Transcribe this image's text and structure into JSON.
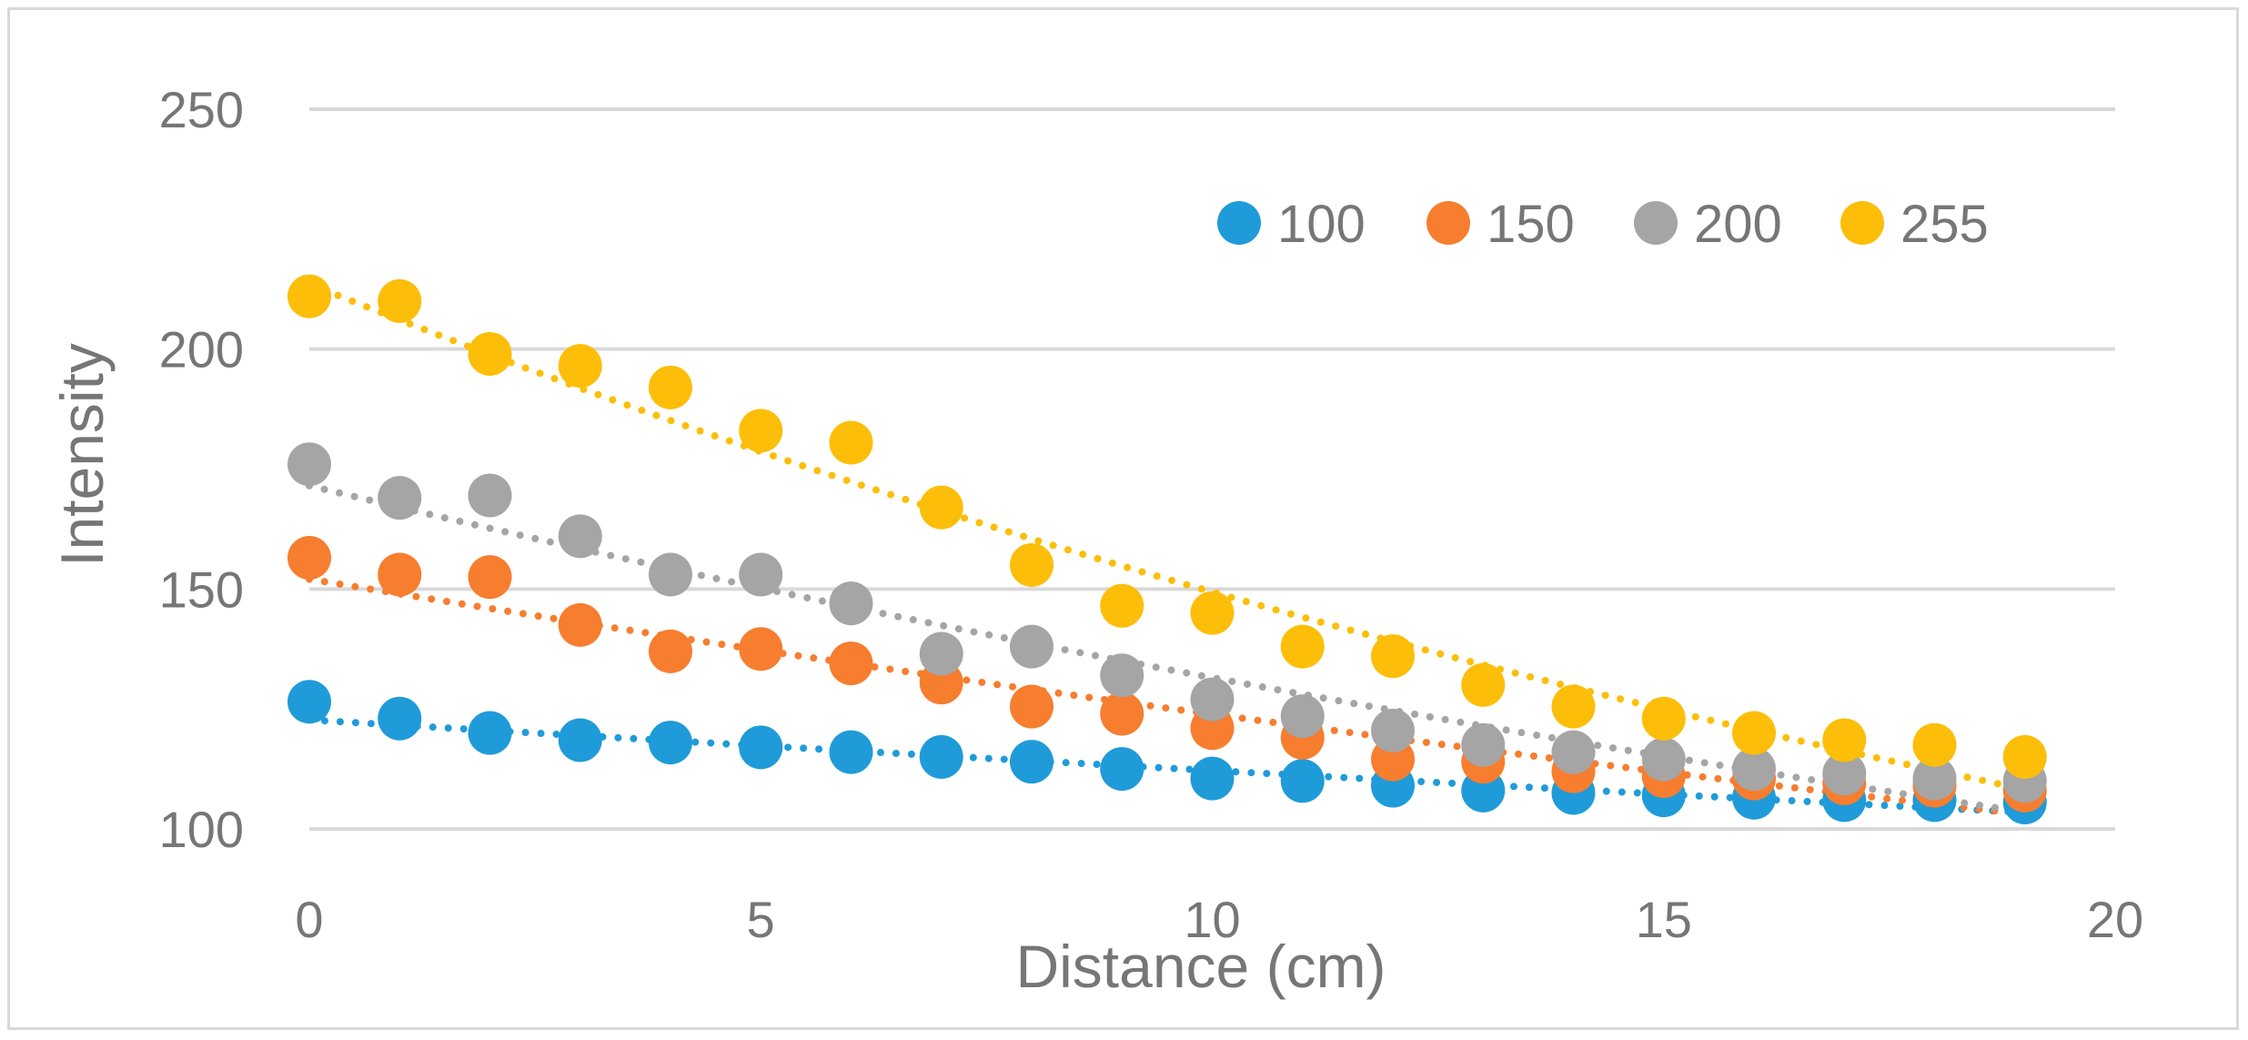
{
  "chart_data": {
    "type": "scatter",
    "title": "",
    "xlabel": "Distance  (cm)",
    "ylabel": "Intensity",
    "xlim": [
      0,
      20
    ],
    "ylim": [
      100,
      250
    ],
    "x_ticks": [
      "0",
      "5",
      "10",
      "15",
      "20"
    ],
    "y_ticks": [
      "100",
      "150",
      "200",
      "250"
    ],
    "grid": "horizontal",
    "legend_position": "top-right",
    "trendlines": "dotted",
    "x": [
      0,
      1,
      2,
      3,
      4,
      5,
      6,
      7,
      8,
      9,
      10,
      11,
      12,
      13,
      14,
      15,
      16,
      17,
      18,
      19
    ],
    "series": [
      {
        "name": "100",
        "color": "#1f9bd9",
        "values": [
          126.5,
          123,
          120,
          118.5,
          118,
          117,
          116,
          115,
          114,
          112.5,
          110.5,
          110,
          109,
          108,
          107.5,
          107,
          106.5,
          106,
          106,
          105.5
        ]
      },
      {
        "name": "150",
        "color": "#f77d2f",
        "values": [
          156.5,
          153,
          152.5,
          142.5,
          137,
          137.5,
          134.5,
          130.5,
          125.5,
          124,
          121,
          119,
          114.5,
          114,
          112,
          111,
          110.5,
          109.5,
          109,
          108
        ]
      },
      {
        "name": "200",
        "color": "#a5a5a5",
        "values": [
          176,
          169,
          169.5,
          161,
          153,
          153,
          147,
          136.5,
          138,
          132,
          127,
          123.5,
          120.5,
          117.5,
          116,
          114.5,
          112.5,
          111.5,
          110.5,
          110
        ]
      },
      {
        "name": "255",
        "color": "#fcbe08",
        "values": [
          211,
          210,
          199,
          196.5,
          192,
          183,
          180.5,
          167,
          155,
          146.5,
          145,
          138,
          136,
          130,
          125.5,
          123,
          120,
          118.5,
          117.5,
          115
        ]
      }
    ]
  }
}
